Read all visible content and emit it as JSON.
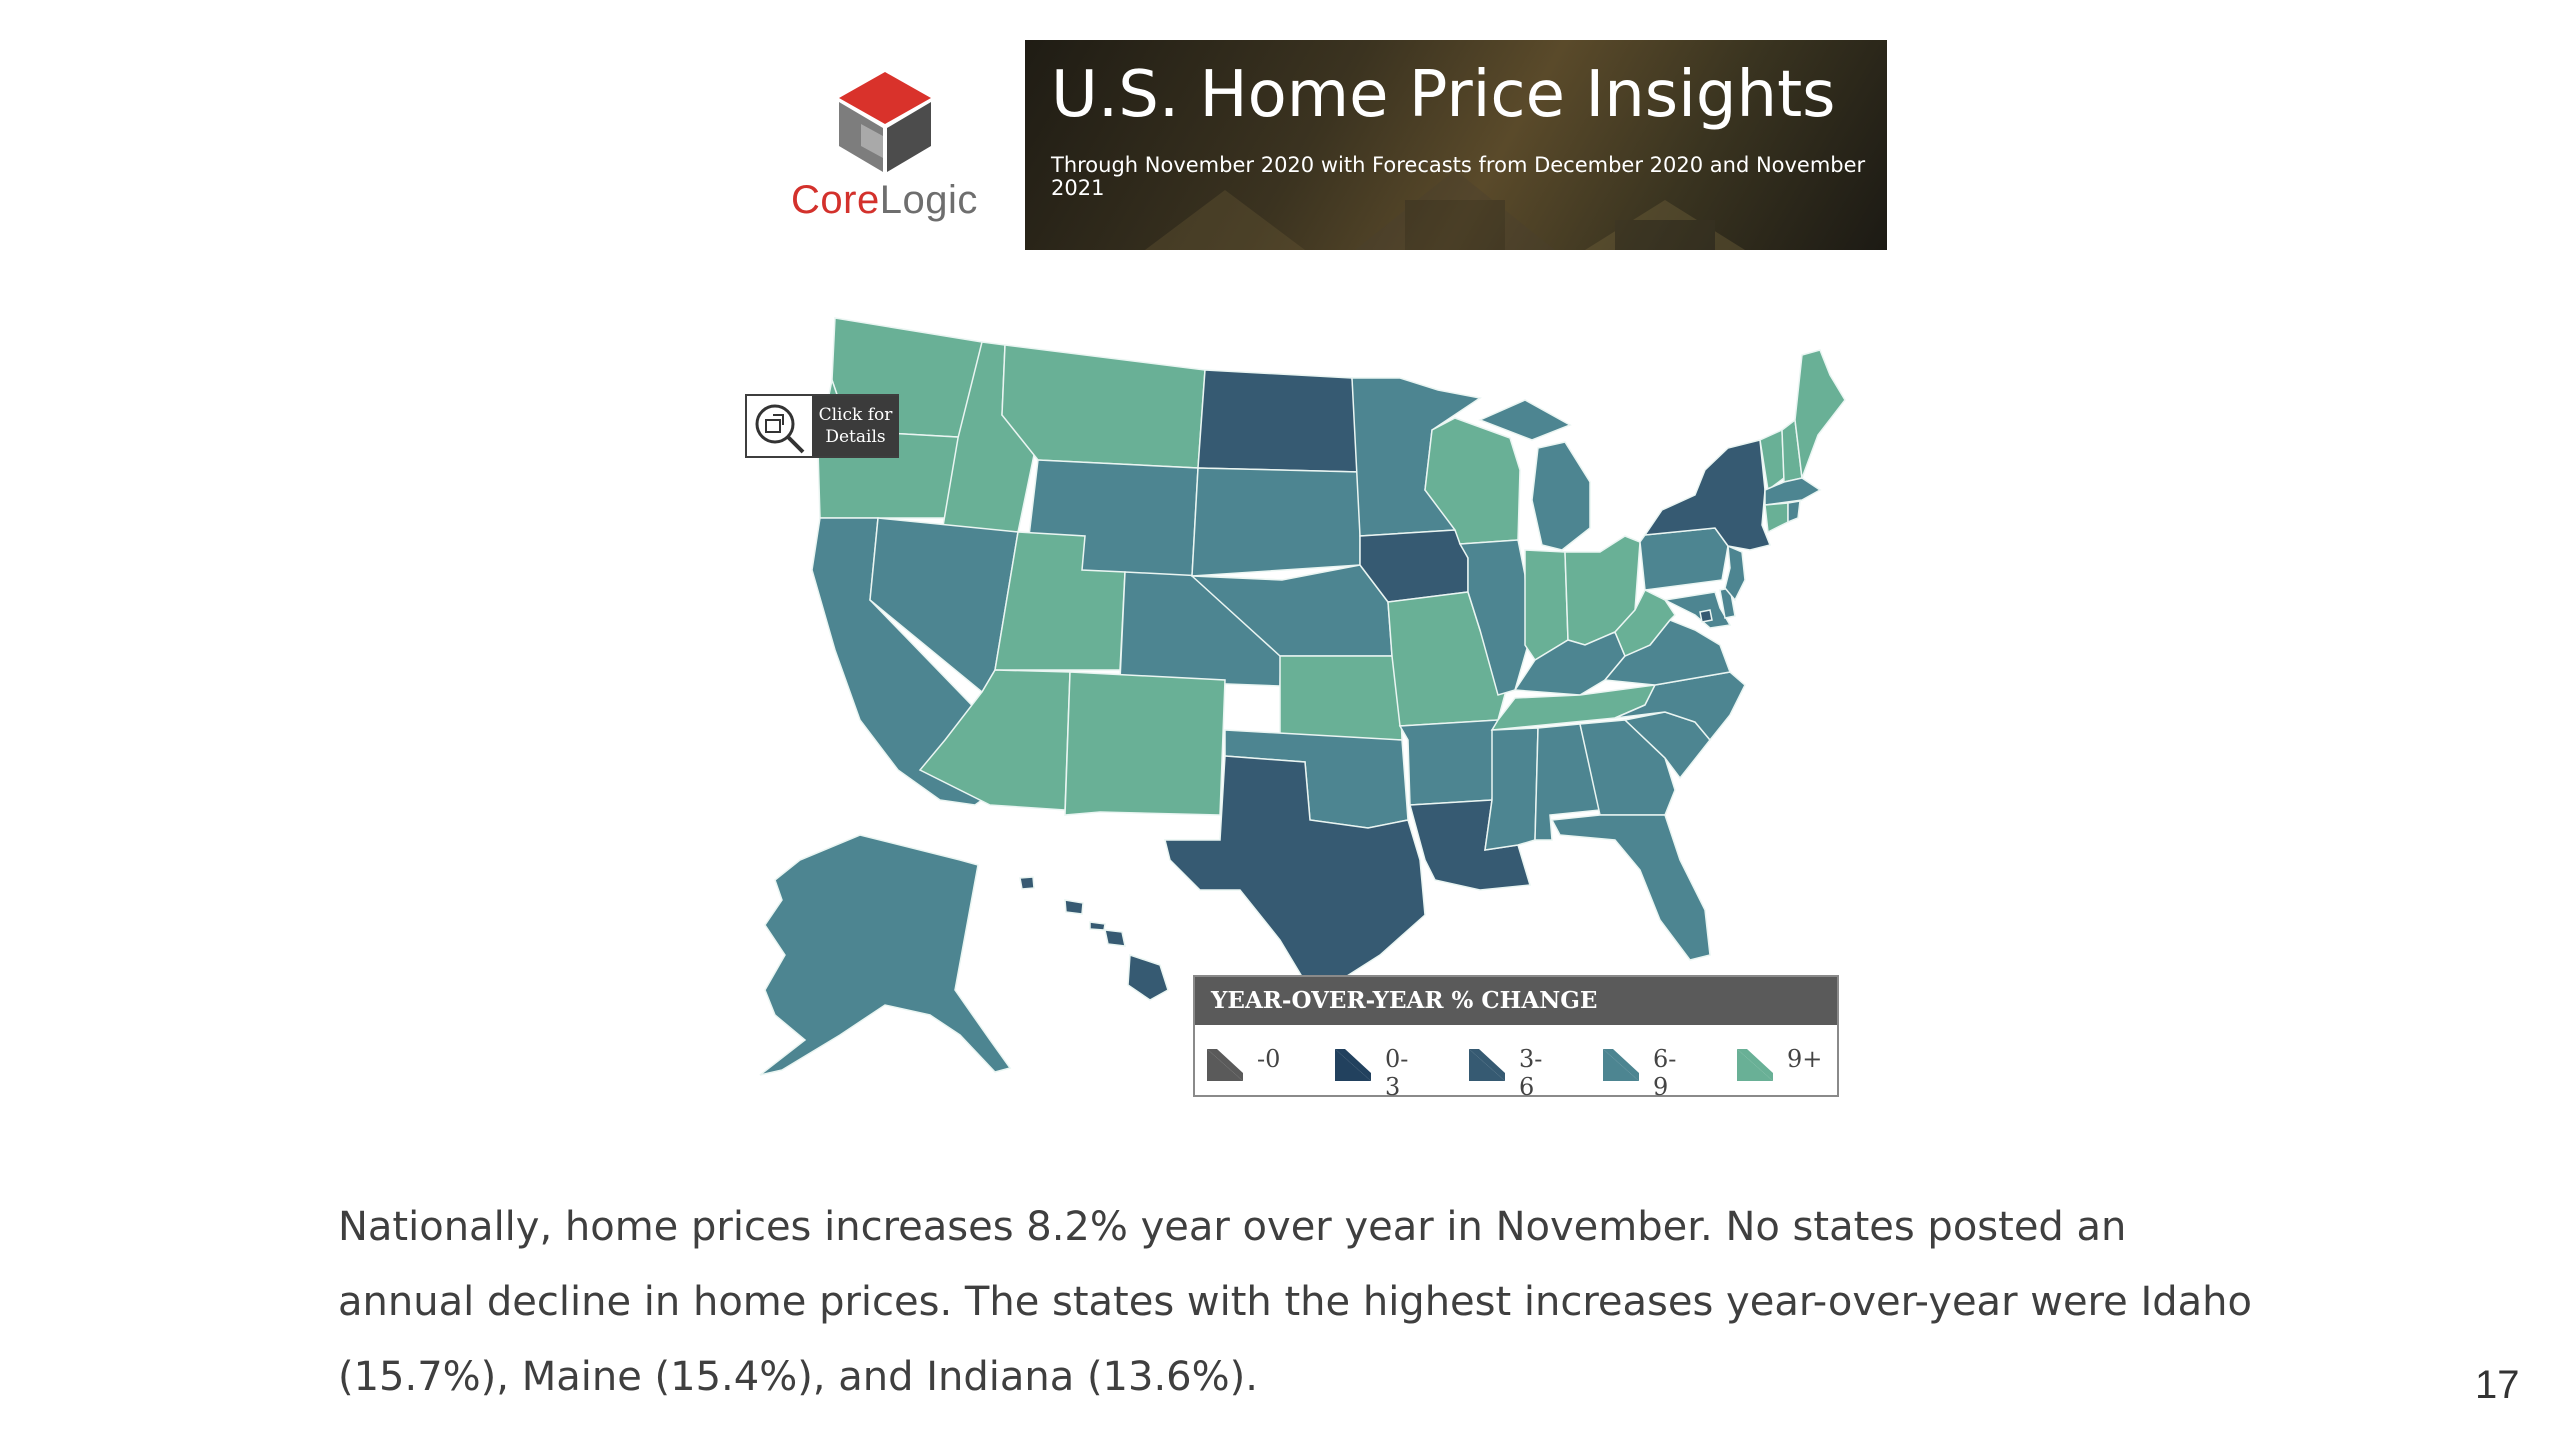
{
  "logo": {
    "text_core": "Core",
    "text_logic": "Logic"
  },
  "banner": {
    "title": "U.S. Home Price Insights",
    "subtitle": "Through November 2020 with Forecasts from December 2020 and November 2021"
  },
  "details_button": {
    "label": "Click for\nDetails"
  },
  "legend": {
    "title": "YEAR-OVER-YEAR % CHANGE",
    "items": [
      {
        "label": "-0",
        "color": "#5a5a5a"
      },
      {
        "label": "0-3",
        "color": "#22415e"
      },
      {
        "label": "3-6",
        "color": "#365a72"
      },
      {
        "label": "6-9",
        "color": "#4d8591"
      },
      {
        "label": "9+",
        "color": "#69b096"
      }
    ]
  },
  "map_data": {
    "type": "choropleth",
    "region": "United States",
    "states": {
      "Washington": "9+",
      "Oregon": "9+",
      "Idaho": "9+",
      "Montana": "9+",
      "Utah": "9+",
      "Arizona": "9+",
      "New Mexico": "9+",
      "Kansas": "9+",
      "Missouri": "9+",
      "Wisconsin": "9+",
      "Indiana": "9+",
      "Ohio": "9+",
      "Tennessee": "9+",
      "West Virginia": "9+",
      "Maine": "9+",
      "Vermont": "9+",
      "New Hampshire": "9+",
      "Connecticut": "9+",
      "California": "6-9",
      "Nevada": "6-9",
      "Wyoming": "6-9",
      "Colorado": "6-9",
      "South Dakota": "6-9",
      "Nebraska": "6-9",
      "Minnesota": "6-9",
      "Oklahoma": "6-9",
      "Arkansas": "6-9",
      "Illinois": "6-9",
      "Michigan": "6-9",
      "Kentucky": "6-9",
      "Mississippi": "6-9",
      "Alabama": "6-9",
      "Georgia": "6-9",
      "Florida": "6-9",
      "South Carolina": "6-9",
      "North Carolina": "6-9",
      "Virginia": "6-9",
      "Pennsylvania": "6-9",
      "New Jersey": "6-9",
      "Maryland": "6-9",
      "Delaware": "6-9",
      "Massachusetts": "6-9",
      "Rhode Island": "6-9",
      "Alaska": "6-9",
      "North Dakota": "3-6",
      "Iowa": "3-6",
      "Texas": "3-6",
      "Louisiana": "3-6",
      "New York": "3-6",
      "Hawaii": "3-6",
      "District of Columbia": "3-6"
    }
  },
  "caption": "Nationally, home prices increases 8.2% year over year in November. No states posted an annual decline in home prices. The states with the highest increases year-over-year were Idaho (15.7%), Maine (15.4%), and Indiana (13.6%).",
  "page_number": "17"
}
